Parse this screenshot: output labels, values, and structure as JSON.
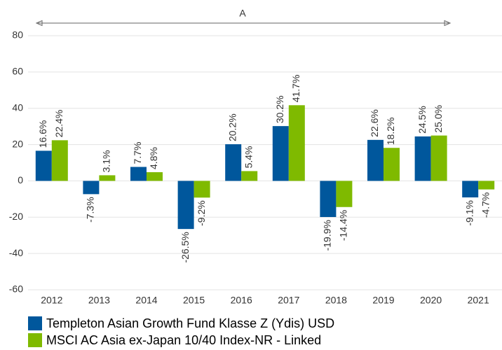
{
  "chart_data": {
    "type": "bar",
    "annotation": "A",
    "categories": [
      "2012",
      "2013",
      "2014",
      "2015",
      "2016",
      "2017",
      "2018",
      "2019",
      "2020",
      "2021"
    ],
    "series": [
      {
        "name": "Templeton Asian Growth Fund Klasse Z (Ydis) USD",
        "color": "#00579c",
        "values": [
          16.6,
          -7.3,
          7.7,
          -26.5,
          20.2,
          30.2,
          -19.9,
          22.6,
          24.5,
          -9.1
        ],
        "value_labels": [
          "16.6%",
          "-7.3%",
          "7.7%",
          "-26.5%",
          "20.2%",
          "30.2%",
          "-19.9%",
          "22.6%",
          "24.5%",
          "-9.1%"
        ]
      },
      {
        "name": "MSCI AC Asia ex-Japan 10/40 Index-NR - Linked",
        "color": "#7fba00",
        "values": [
          22.4,
          3.1,
          4.8,
          -9.2,
          5.4,
          41.7,
          -14.4,
          18.2,
          25.0,
          -4.7
        ],
        "value_labels": [
          "22.4%",
          "3.1%",
          "4.8%",
          "-9.2%",
          "5.4%",
          "41.7%",
          "-14.4%",
          "18.2%",
          "25.0%",
          "-4.7%"
        ]
      }
    ],
    "ylim": [
      -60,
      80
    ],
    "yticks": [
      -60,
      -40,
      -20,
      0,
      20,
      40,
      60,
      80
    ],
    "grid": true
  }
}
